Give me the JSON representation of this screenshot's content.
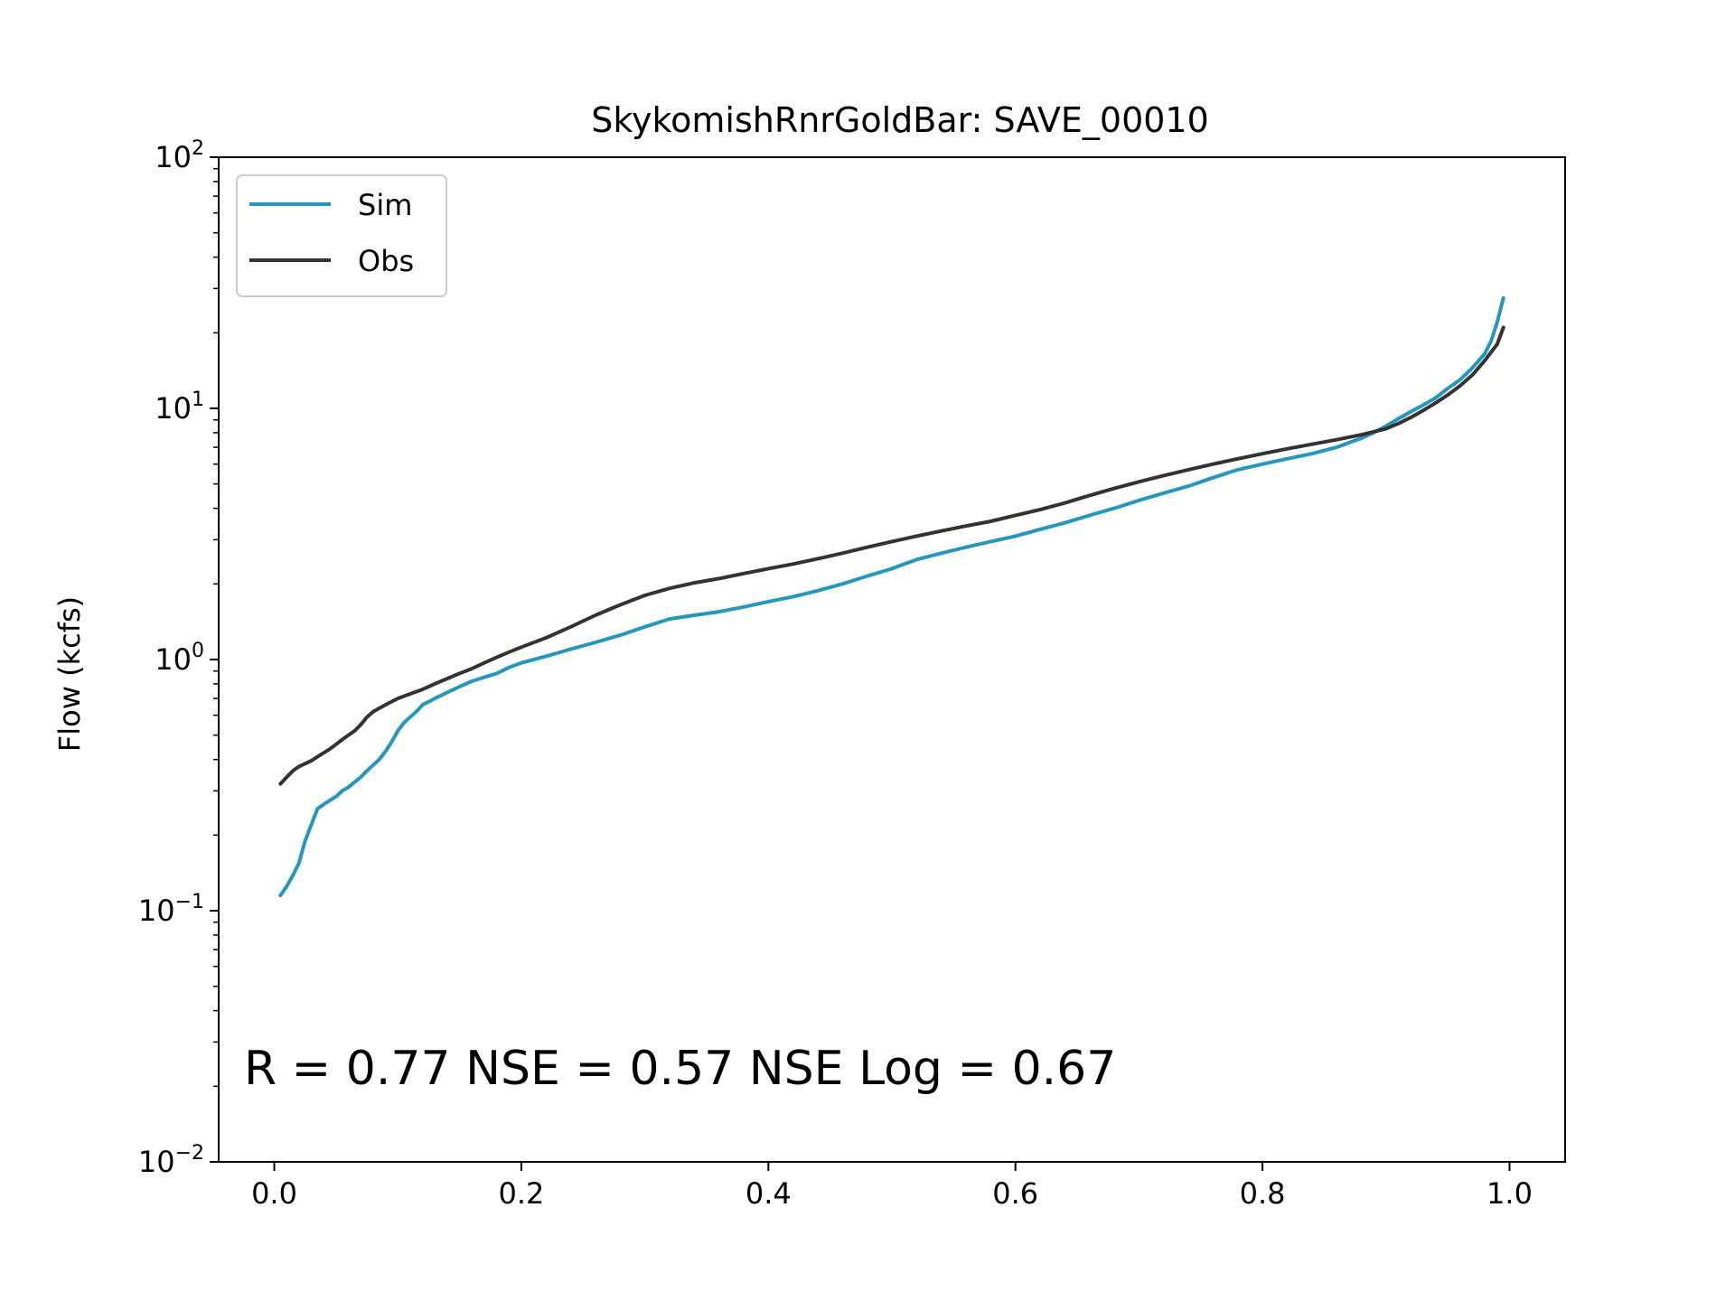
{
  "chart_data": {
    "type": "line",
    "title": "SkykomishRnrGoldBar: SAVE_00010",
    "xlabel": "",
    "ylabel": "Flow (kcfs)",
    "xlim": [
      -0.045,
      1.045
    ],
    "ylim": [
      0.01,
      100
    ],
    "y_scale": "log",
    "grid": false,
    "legend_position": "top-left",
    "x_ticks": [
      {
        "value": 0.0,
        "label": "0.0"
      },
      {
        "value": 0.2,
        "label": "0.2"
      },
      {
        "value": 0.4,
        "label": "0.4"
      },
      {
        "value": 0.6,
        "label": "0.6"
      },
      {
        "value": 0.8,
        "label": "0.8"
      },
      {
        "value": 1.0,
        "label": "1.0"
      }
    ],
    "y_ticks": [
      {
        "value": 0.01,
        "base": "10",
        "exp": "−2"
      },
      {
        "value": 0.1,
        "base": "10",
        "exp": "−1"
      },
      {
        "value": 1,
        "base": "10",
        "exp": "0"
      },
      {
        "value": 10,
        "base": "10",
        "exp": "1"
      },
      {
        "value": 100,
        "base": "10",
        "exp": "2"
      }
    ],
    "annotation": "R = 0.77  NSE = 0.57  NSE Log = 0.67",
    "series": [
      {
        "name": "Sim",
        "color": "#2596be",
        "points": [
          [
            0.005,
            0.115
          ],
          [
            0.01,
            0.125
          ],
          [
            0.015,
            0.138
          ],
          [
            0.02,
            0.155
          ],
          [
            0.025,
            0.19
          ],
          [
            0.03,
            0.22
          ],
          [
            0.035,
            0.255
          ],
          [
            0.04,
            0.265
          ],
          [
            0.045,
            0.275
          ],
          [
            0.05,
            0.285
          ],
          [
            0.055,
            0.3
          ],
          [
            0.06,
            0.31
          ],
          [
            0.065,
            0.325
          ],
          [
            0.07,
            0.34
          ],
          [
            0.075,
            0.36
          ],
          [
            0.08,
            0.38
          ],
          [
            0.085,
            0.4
          ],
          [
            0.09,
            0.43
          ],
          [
            0.095,
            0.47
          ],
          [
            0.1,
            0.52
          ],
          [
            0.105,
            0.56
          ],
          [
            0.11,
            0.59
          ],
          [
            0.115,
            0.62
          ],
          [
            0.12,
            0.66
          ],
          [
            0.13,
            0.7
          ],
          [
            0.14,
            0.74
          ],
          [
            0.15,
            0.78
          ],
          [
            0.16,
            0.82
          ],
          [
            0.17,
            0.85
          ],
          [
            0.18,
            0.88
          ],
          [
            0.19,
            0.93
          ],
          [
            0.2,
            0.97
          ],
          [
            0.22,
            1.03
          ],
          [
            0.24,
            1.1
          ],
          [
            0.26,
            1.17
          ],
          [
            0.28,
            1.25
          ],
          [
            0.3,
            1.35
          ],
          [
            0.32,
            1.45
          ],
          [
            0.34,
            1.5
          ],
          [
            0.36,
            1.55
          ],
          [
            0.38,
            1.62
          ],
          [
            0.4,
            1.7
          ],
          [
            0.42,
            1.78
          ],
          [
            0.44,
            1.88
          ],
          [
            0.46,
            2.0
          ],
          [
            0.48,
            2.15
          ],
          [
            0.5,
            2.3
          ],
          [
            0.52,
            2.5
          ],
          [
            0.54,
            2.65
          ],
          [
            0.56,
            2.8
          ],
          [
            0.58,
            2.95
          ],
          [
            0.6,
            3.1
          ],
          [
            0.62,
            3.3
          ],
          [
            0.64,
            3.5
          ],
          [
            0.66,
            3.75
          ],
          [
            0.68,
            4.0
          ],
          [
            0.7,
            4.3
          ],
          [
            0.72,
            4.6
          ],
          [
            0.74,
            4.9
          ],
          [
            0.76,
            5.3
          ],
          [
            0.78,
            5.7
          ],
          [
            0.8,
            6.0
          ],
          [
            0.82,
            6.3
          ],
          [
            0.84,
            6.6
          ],
          [
            0.86,
            7.0
          ],
          [
            0.87,
            7.3
          ],
          [
            0.88,
            7.6
          ],
          [
            0.89,
            8.0
          ],
          [
            0.9,
            8.5
          ],
          [
            0.91,
            9.1
          ],
          [
            0.92,
            9.7
          ],
          [
            0.93,
            10.3
          ],
          [
            0.94,
            11.0
          ],
          [
            0.95,
            12.0
          ],
          [
            0.96,
            13.0
          ],
          [
            0.97,
            14.5
          ],
          [
            0.98,
            16.5
          ],
          [
            0.985,
            18.5
          ],
          [
            0.99,
            22.0
          ],
          [
            0.995,
            27.5
          ]
        ]
      },
      {
        "name": "Obs",
        "color": "#333333",
        "points": [
          [
            0.005,
            0.32
          ],
          [
            0.01,
            0.34
          ],
          [
            0.015,
            0.36
          ],
          [
            0.02,
            0.375
          ],
          [
            0.025,
            0.385
          ],
          [
            0.03,
            0.395
          ],
          [
            0.035,
            0.41
          ],
          [
            0.04,
            0.425
          ],
          [
            0.045,
            0.44
          ],
          [
            0.05,
            0.46
          ],
          [
            0.055,
            0.48
          ],
          [
            0.06,
            0.5
          ],
          [
            0.065,
            0.52
          ],
          [
            0.07,
            0.55
          ],
          [
            0.075,
            0.59
          ],
          [
            0.08,
            0.62
          ],
          [
            0.085,
            0.64
          ],
          [
            0.09,
            0.66
          ],
          [
            0.095,
            0.68
          ],
          [
            0.1,
            0.7
          ],
          [
            0.11,
            0.73
          ],
          [
            0.12,
            0.76
          ],
          [
            0.13,
            0.8
          ],
          [
            0.14,
            0.84
          ],
          [
            0.15,
            0.88
          ],
          [
            0.16,
            0.92
          ],
          [
            0.17,
            0.97
          ],
          [
            0.18,
            1.02
          ],
          [
            0.19,
            1.07
          ],
          [
            0.2,
            1.12
          ],
          [
            0.22,
            1.22
          ],
          [
            0.24,
            1.35
          ],
          [
            0.26,
            1.5
          ],
          [
            0.28,
            1.65
          ],
          [
            0.3,
            1.8
          ],
          [
            0.32,
            1.92
          ],
          [
            0.34,
            2.02
          ],
          [
            0.36,
            2.1
          ],
          [
            0.38,
            2.2
          ],
          [
            0.4,
            2.3
          ],
          [
            0.42,
            2.4
          ],
          [
            0.44,
            2.52
          ],
          [
            0.46,
            2.65
          ],
          [
            0.48,
            2.8
          ],
          [
            0.5,
            2.95
          ],
          [
            0.52,
            3.1
          ],
          [
            0.54,
            3.25
          ],
          [
            0.56,
            3.4
          ],
          [
            0.58,
            3.55
          ],
          [
            0.6,
            3.75
          ],
          [
            0.62,
            3.95
          ],
          [
            0.64,
            4.2
          ],
          [
            0.66,
            4.5
          ],
          [
            0.68,
            4.8
          ],
          [
            0.7,
            5.1
          ],
          [
            0.72,
            5.4
          ],
          [
            0.74,
            5.7
          ],
          [
            0.76,
            6.0
          ],
          [
            0.78,
            6.3
          ],
          [
            0.8,
            6.6
          ],
          [
            0.82,
            6.9
          ],
          [
            0.84,
            7.2
          ],
          [
            0.86,
            7.5
          ],
          [
            0.88,
            7.85
          ],
          [
            0.9,
            8.3
          ],
          [
            0.91,
            8.7
          ],
          [
            0.92,
            9.2
          ],
          [
            0.93,
            9.8
          ],
          [
            0.94,
            10.5
          ],
          [
            0.95,
            11.3
          ],
          [
            0.96,
            12.3
          ],
          [
            0.97,
            13.6
          ],
          [
            0.98,
            15.5
          ],
          [
            0.99,
            18.0
          ],
          [
            0.995,
            21.0
          ]
        ]
      }
    ]
  }
}
